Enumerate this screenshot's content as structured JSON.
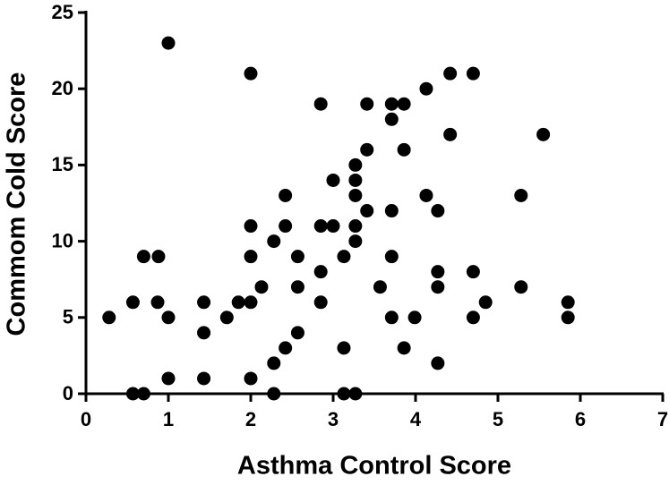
{
  "chart_data": {
    "type": "scatter",
    "x_label": "Asthma Control Score",
    "y_label": "Commom Cold Score",
    "x": [
      0.28,
      0.57,
      0.57,
      0.7,
      0.7,
      0.88,
      0.87,
      1.0,
      1.0,
      1.0,
      1.43,
      1.43,
      1.43,
      1.71,
      1.85,
      2.0,
      2.0,
      2.0,
      2.0,
      2.0,
      2.13,
      2.28,
      2.28,
      2.28,
      2.42,
      2.42,
      2.42,
      2.57,
      2.57,
      2.57,
      2.85,
      2.85,
      2.85,
      2.85,
      3.0,
      3.0,
      3.13,
      3.13,
      3.13,
      3.27,
      3.27,
      3.27,
      3.27,
      3.27,
      3.27,
      3.41,
      3.41,
      3.41,
      3.57,
      3.71,
      3.71,
      3.71,
      3.71,
      3.71,
      3.86,
      3.86,
      3.86,
      3.99,
      4.13,
      4.13,
      4.27,
      4.27,
      4.27,
      4.27,
      4.42,
      4.42,
      4.7,
      4.7,
      4.7,
      4.85,
      5.28,
      5.28,
      5.55,
      5.85,
      5.85
    ],
    "values": [
      5,
      6,
      0,
      0,
      9,
      9,
      6,
      23,
      5,
      1,
      6,
      4,
      1,
      5,
      6,
      21,
      11,
      9,
      6,
      1,
      7,
      10,
      2,
      0,
      13,
      11,
      3,
      9,
      7,
      4,
      19,
      11,
      8,
      6,
      14,
      11,
      9,
      3,
      0,
      15,
      14,
      13,
      11,
      10,
      0,
      19,
      16,
      12,
      7,
      19,
      18,
      12,
      9,
      5,
      19,
      16,
      3,
      5,
      20,
      13,
      12,
      8,
      7,
      2,
      21,
      17,
      21,
      8,
      5,
      6,
      13,
      7,
      17,
      6,
      5
    ],
    "color": "#000000",
    "xlim": [
      0,
      7
    ],
    "xticks": [
      0,
      1,
      2,
      3,
      4,
      5,
      6,
      7
    ],
    "ylim": [
      0,
      25
    ],
    "yticks": [
      0,
      5,
      10,
      15,
      20,
      25
    ],
    "grid": false
  }
}
